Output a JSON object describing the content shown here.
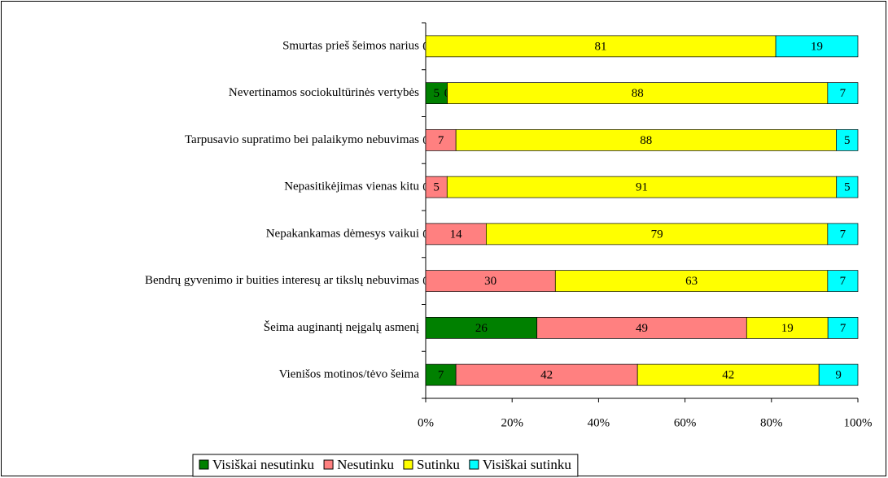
{
  "chart_data": {
    "type": "stacked-bar-100",
    "categories": [
      "Smurtas prieš šeimos narius",
      "Nevertinamos sociokultūrinės  vertybės",
      "Tarpusavio supratimo bei palaikymo nebuvimas",
      "Nepasitikėjimas vienas kitu",
      "Nepakankamas dėmesys vaikui",
      "Bendrų gyvenimo ir buities interesų ar tikslų nebuvimas",
      "Šeima auginantį neįgalų asmenį",
      "Vienišos motinos/tėvo šeima"
    ],
    "series": [
      {
        "name": "Visiškai nesutinku",
        "color": "#008000",
        "values": [
          0,
          5,
          0,
          0,
          0,
          0,
          26,
          7
        ]
      },
      {
        "name": "Nesutinku",
        "color": "#ff8080",
        "values": [
          0,
          0,
          7,
          5,
          14,
          30,
          49,
          42
        ]
      },
      {
        "name": "Sutinku",
        "color": "#ffff00",
        "values": [
          81,
          88,
          88,
          91,
          79,
          63,
          19,
          42
        ]
      },
      {
        "name": "Visiškai sutinku",
        "color": "#00ffff",
        "values": [
          19,
          7,
          5,
          5,
          7,
          7,
          7,
          9
        ]
      }
    ],
    "xlim": [
      0,
      100
    ],
    "xticks": [
      {
        "value": 0,
        "label": "0%"
      },
      {
        "value": 20,
        "label": "20%"
      },
      {
        "value": 40,
        "label": "40%"
      },
      {
        "value": 60,
        "label": "60%"
      },
      {
        "value": 80,
        "label": "80%"
      },
      {
        "value": 100,
        "label": "100%"
      }
    ],
    "legend": "bottom"
  }
}
